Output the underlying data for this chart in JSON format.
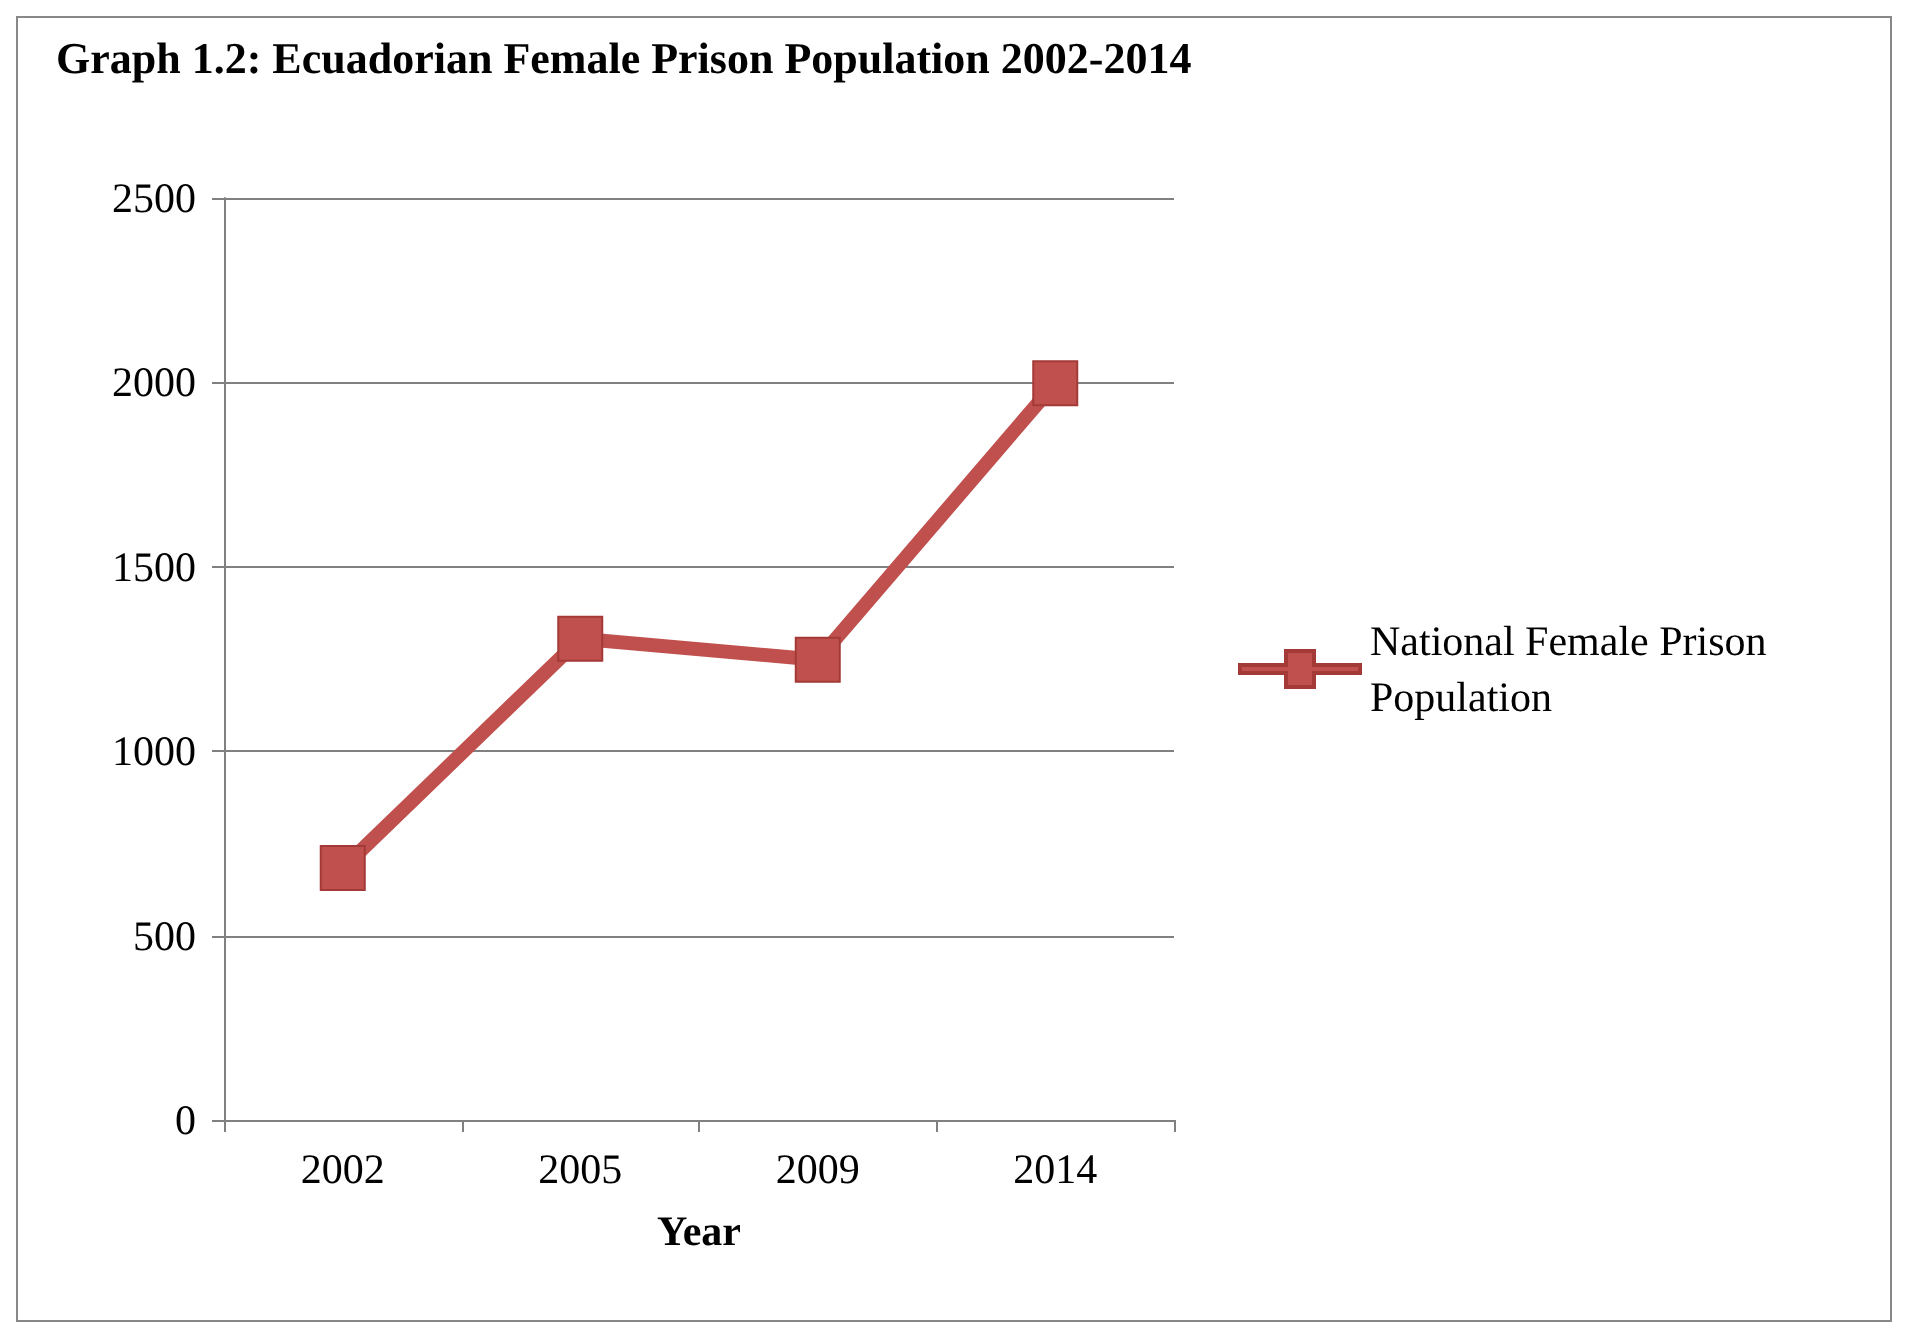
{
  "chart_data": {
    "type": "line",
    "title": "Graph 1.2: Ecuadorian Female Prison Population 2002-2014",
    "xlabel": "Year",
    "categories": [
      "2002",
      "2005",
      "2009",
      "2014"
    ],
    "series": [
      {
        "name": "National Female Prison Population",
        "color": "#c0504d",
        "values": [
          683,
          1305,
          1248,
          1998
        ]
      }
    ],
    "ylim": [
      0,
      2500
    ],
    "yticks": [
      0,
      500,
      1000,
      1500,
      2000,
      2500
    ],
    "grid": "y",
    "legend": "right",
    "marker": "square",
    "line_style": "solid"
  }
}
